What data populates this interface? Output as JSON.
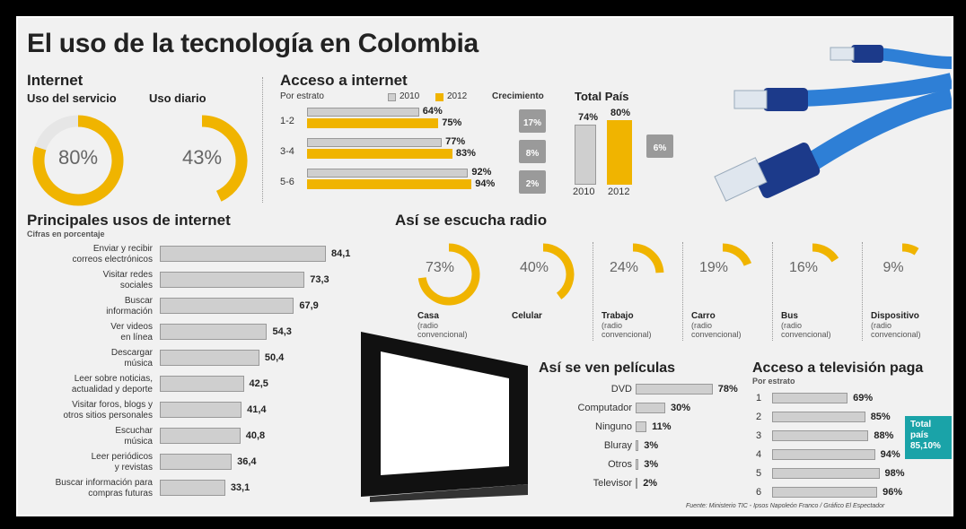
{
  "title": "El uso de la tecnología en Colombia",
  "colors": {
    "accent": "#f0b400",
    "gray_bar": "#cfcfcf",
    "teal": "#1aa3a8",
    "cable": "#2e7fd6"
  },
  "internet": {
    "heading": "Internet",
    "uso_servicio": {
      "label": "Uso del servicio",
      "value": "80%",
      "fraction": 0.8
    },
    "uso_diario": {
      "label": "Uso diario",
      "value": "43%",
      "fraction": 0.43
    }
  },
  "acceso_internet": {
    "heading": "Acceso a internet",
    "by": "Por estrato",
    "legend_2010": "2010",
    "legend_2012": "2012",
    "growth_label": "Crecimiento",
    "total_label": "Total País",
    "rows": [
      {
        "label": "1-2",
        "v2010": 64,
        "v2012": 75,
        "t2010": "64%",
        "t2012": "75%",
        "growth": "17%"
      },
      {
        "label": "3-4",
        "v2010": 77,
        "v2012": 83,
        "t2010": "77%",
        "t2012": "83%",
        "growth": "8%"
      },
      {
        "label": "5-6",
        "v2010": 92,
        "v2012": 94,
        "t2010": "92%",
        "t2012": "94%",
        "growth": "2%"
      }
    ],
    "total": {
      "v2010": 74,
      "v2012": 80,
      "t2010": "74%",
      "t2012": "80%",
      "x2010": "2010",
      "x2012": "2012",
      "growth": "6%"
    }
  },
  "usos": {
    "heading": "Principales usos de internet",
    "sub": "Cifras en porcentaje",
    "items": [
      {
        "l1": "Enviar y recibir",
        "l2": "correos electrónicos",
        "v": 84.1,
        "t": "84,1"
      },
      {
        "l1": "Visitar redes",
        "l2": "sociales",
        "v": 73.3,
        "t": "73,3"
      },
      {
        "l1": "Buscar",
        "l2": "información",
        "v": 67.9,
        "t": "67,9"
      },
      {
        "l1": "Ver videos",
        "l2": "en línea",
        "v": 54.3,
        "t": "54,3"
      },
      {
        "l1": "Descargar",
        "l2": "música",
        "v": 50.4,
        "t": "50,4"
      },
      {
        "l1": "Leer sobre noticias,",
        "l2": "actualidad y deporte",
        "v": 42.5,
        "t": "42,5"
      },
      {
        "l1": "Visitar foros, blogs y",
        "l2": "otros sitios personales",
        "v": 41.4,
        "t": "41,4"
      },
      {
        "l1": "Escuchar",
        "l2": "música",
        "v": 40.8,
        "t": "40,8"
      },
      {
        "l1": "Leer periódicos",
        "l2": "y revistas",
        "v": 36.4,
        "t": "36,4"
      },
      {
        "l1": "Buscar información para",
        "l2": "compras futuras",
        "v": 33.1,
        "t": "33,1"
      }
    ]
  },
  "radio": {
    "heading": "Así se escucha radio",
    "items": [
      {
        "value": "73%",
        "fraction": 0.73,
        "name": "Casa",
        "sub1": "(radio",
        "sub2": "convencional)"
      },
      {
        "value": "40%",
        "fraction": 0.4,
        "name": "Celular",
        "sub1": "",
        "sub2": ""
      },
      {
        "value": "24%",
        "fraction": 0.24,
        "name": "Trabajo",
        "sub1": "(radio",
        "sub2": "convencional)"
      },
      {
        "value": "19%",
        "fraction": 0.19,
        "name": "Carro",
        "sub1": "(radio",
        "sub2": "convencional)"
      },
      {
        "value": "16%",
        "fraction": 0.16,
        "name": "Bus",
        "sub1": "(radio",
        "sub2": "convencional)"
      },
      {
        "value": "9%",
        "fraction": 0.09,
        "name": "Dispositivo",
        "sub1": "(radio",
        "sub2": "convencional)"
      }
    ]
  },
  "peliculas": {
    "heading": "Así se ven películas",
    "items": [
      {
        "label": "DVD",
        "v": 78,
        "t": "78%"
      },
      {
        "label": "Computador",
        "v": 30,
        "t": "30%"
      },
      {
        "label": "Ninguno",
        "v": 11,
        "t": "11%"
      },
      {
        "label": "Bluray",
        "v": 3,
        "t": "3%"
      },
      {
        "label": "Otros",
        "v": 3,
        "t": "3%"
      },
      {
        "label": "Televisor",
        "v": 2,
        "t": "2%"
      }
    ]
  },
  "tv": {
    "heading": "Acceso a televisión paga",
    "by": "Por estrato",
    "items": [
      {
        "label": "1",
        "v": 69,
        "t": "69%"
      },
      {
        "label": "2",
        "v": 85,
        "t": "85%"
      },
      {
        "label": "3",
        "v": 88,
        "t": "88%"
      },
      {
        "label": "4",
        "v": 94,
        "t": "94%"
      },
      {
        "label": "5",
        "v": 98,
        "t": "98%"
      },
      {
        "label": "6",
        "v": 96,
        "t": "96%"
      }
    ],
    "total_l1": "Total",
    "total_l2": "país",
    "total_value": "85,10%"
  },
  "source": "Fuente: Ministerio TIC - Ipsos Napoleón Franco / Gráfico El Espectador",
  "chart_data": [
    {
      "type": "pie",
      "title": "Internet",
      "series": [
        {
          "name": "Uso del servicio",
          "values": [
            80
          ]
        },
        {
          "name": "Uso diario",
          "values": [
            43
          ]
        }
      ]
    },
    {
      "type": "bar",
      "title": "Acceso a internet",
      "xlabel": "Por estrato",
      "categories": [
        "1-2",
        "3-4",
        "5-6"
      ],
      "series": [
        {
          "name": "2010",
          "values": [
            64,
            77,
            92
          ]
        },
        {
          "name": "2012",
          "values": [
            75,
            83,
            94
          ]
        }
      ]
    },
    {
      "type": "bar",
      "title": "Total País",
      "categories": [
        "2010",
        "2012"
      ],
      "values": [
        74,
        80
      ]
    },
    {
      "type": "bar",
      "title": "Principales usos de internet",
      "ylabel": "Cifras en porcentaje",
      "categories": [
        "Enviar y recibir correos electrónicos",
        "Visitar redes sociales",
        "Buscar información",
        "Ver videos en línea",
        "Descargar música",
        "Leer sobre noticias, actualidad y deporte",
        "Visitar foros, blogs y otros sitios personales",
        "Escuchar música",
        "Leer periódicos y revistas",
        "Buscar información para compras futuras"
      ],
      "values": [
        84.1,
        73.3,
        67.9,
        54.3,
        50.4,
        42.5,
        41.4,
        40.8,
        36.4,
        33.1
      ]
    },
    {
      "type": "pie",
      "title": "Así se escucha radio",
      "categories": [
        "Casa",
        "Celular",
        "Trabajo",
        "Carro",
        "Bus",
        "Dispositivo"
      ],
      "values": [
        73,
        40,
        24,
        19,
        16,
        9
      ]
    },
    {
      "type": "bar",
      "title": "Así se ven películas",
      "categories": [
        "DVD",
        "Computador",
        "Ninguno",
        "Bluray",
        "Otros",
        "Televisor"
      ],
      "values": [
        78,
        30,
        11,
        3,
        3,
        2
      ]
    },
    {
      "type": "bar",
      "title": "Acceso a televisión paga",
      "xlabel": "Por estrato",
      "categories": [
        "1",
        "2",
        "3",
        "4",
        "5",
        "6"
      ],
      "values": [
        69,
        85,
        88,
        94,
        98,
        96
      ]
    }
  ]
}
